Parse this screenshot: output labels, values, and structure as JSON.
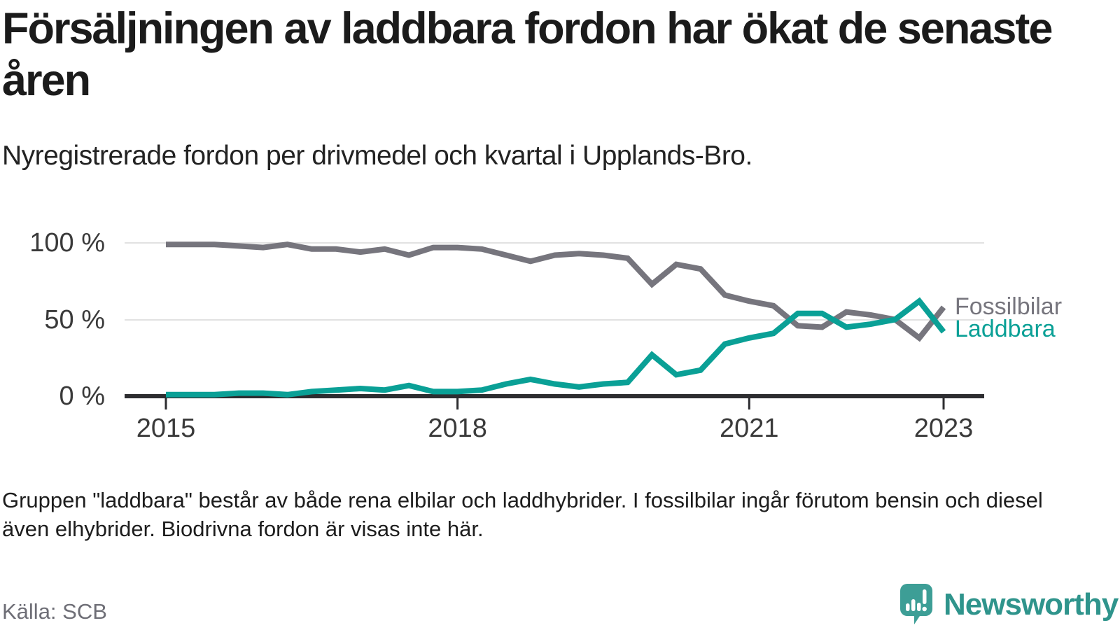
{
  "header": {
    "title": "Försäljningen av laddbara fordon har ökat de senaste åren",
    "subtitle": "Nyregistrerade fordon per drivmedel och kvartal i Upplands-Bro."
  },
  "chart_data": {
    "type": "line",
    "x_unit": "quarter",
    "categories": [
      "2015K1",
      "2015K2",
      "2015K3",
      "2015K4",
      "2016K1",
      "2016K2",
      "2016K3",
      "2016K4",
      "2017K1",
      "2017K2",
      "2017K3",
      "2017K4",
      "2018K1",
      "2018K2",
      "2018K3",
      "2018K4",
      "2019K1",
      "2019K2",
      "2019K3",
      "2019K4",
      "2020K1",
      "2020K2",
      "2020K3",
      "2020K4",
      "2021K1",
      "2021K2",
      "2021K3",
      "2021K4",
      "2022K1",
      "2022K2",
      "2022K3",
      "2022K4",
      "2023K1"
    ],
    "series": [
      {
        "name": "Fossilbilar",
        "color": "#76757d",
        "values": [
          99,
          99,
          99,
          98,
          97,
          99,
          96,
          96,
          94,
          96,
          92,
          97,
          97,
          96,
          92,
          88,
          92,
          93,
          92,
          90,
          73,
          86,
          83,
          66,
          62,
          59,
          46,
          45,
          55,
          53,
          50,
          38,
          58
        ]
      },
      {
        "name": "Laddbara",
        "color": "#0aa096",
        "values": [
          1,
          1,
          1,
          2,
          2,
          1,
          3,
          4,
          5,
          4,
          7,
          3,
          3,
          4,
          8,
          11,
          8,
          6,
          8,
          9,
          27,
          14,
          17,
          34,
          38,
          41,
          54,
          54,
          45,
          47,
          50,
          62,
          42
        ]
      }
    ],
    "ylim": [
      0,
      100
    ],
    "unit": "%",
    "grid": "horizontal",
    "legend_position": "end-of-line",
    "y_ticks": [
      {
        "value": 100,
        "label": "100 %"
      },
      {
        "value": 50,
        "label": "50 %"
      },
      {
        "value": 0,
        "label": "0 %"
      }
    ],
    "x_ticks": [
      {
        "index": 0,
        "label": "2015"
      },
      {
        "index": 12,
        "label": "2018"
      },
      {
        "index": 24,
        "label": "2021"
      },
      {
        "index": 32,
        "label": "2023"
      }
    ]
  },
  "footnote": "Gruppen \"laddbara\" består av både rena elbilar och laddhybrider. I fossilbilar ingår förutom bensin och diesel även elhybrider. Biodrivna fordon är visas inte här.",
  "source": "Källa: SCB",
  "branding": {
    "name": "Newsworthy",
    "icon": "newsworthy-chart-bubble-icon",
    "color": "#2f948c"
  }
}
